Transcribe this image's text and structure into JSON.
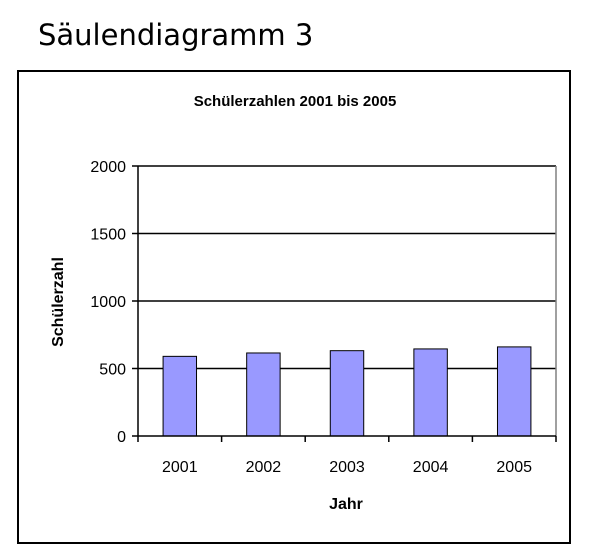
{
  "heading": "Säulendiagramm 3",
  "chart_data": {
    "type": "bar",
    "title": "Schülerzahlen 2001 bis 2005",
    "xlabel": "Jahr",
    "ylabel": "Schülerzahl",
    "categories": [
      "2001",
      "2002",
      "2003",
      "2004",
      "2005"
    ],
    "values": [
      590,
      615,
      632,
      645,
      660
    ],
    "ylim": [
      0,
      2000
    ],
    "yticks": [
      0,
      500,
      1000,
      1500,
      2000
    ],
    "grid": true,
    "legend": "none",
    "colors": {
      "bar": "#9999ff",
      "bar_border": "#000000",
      "gridline": "#000000"
    }
  }
}
